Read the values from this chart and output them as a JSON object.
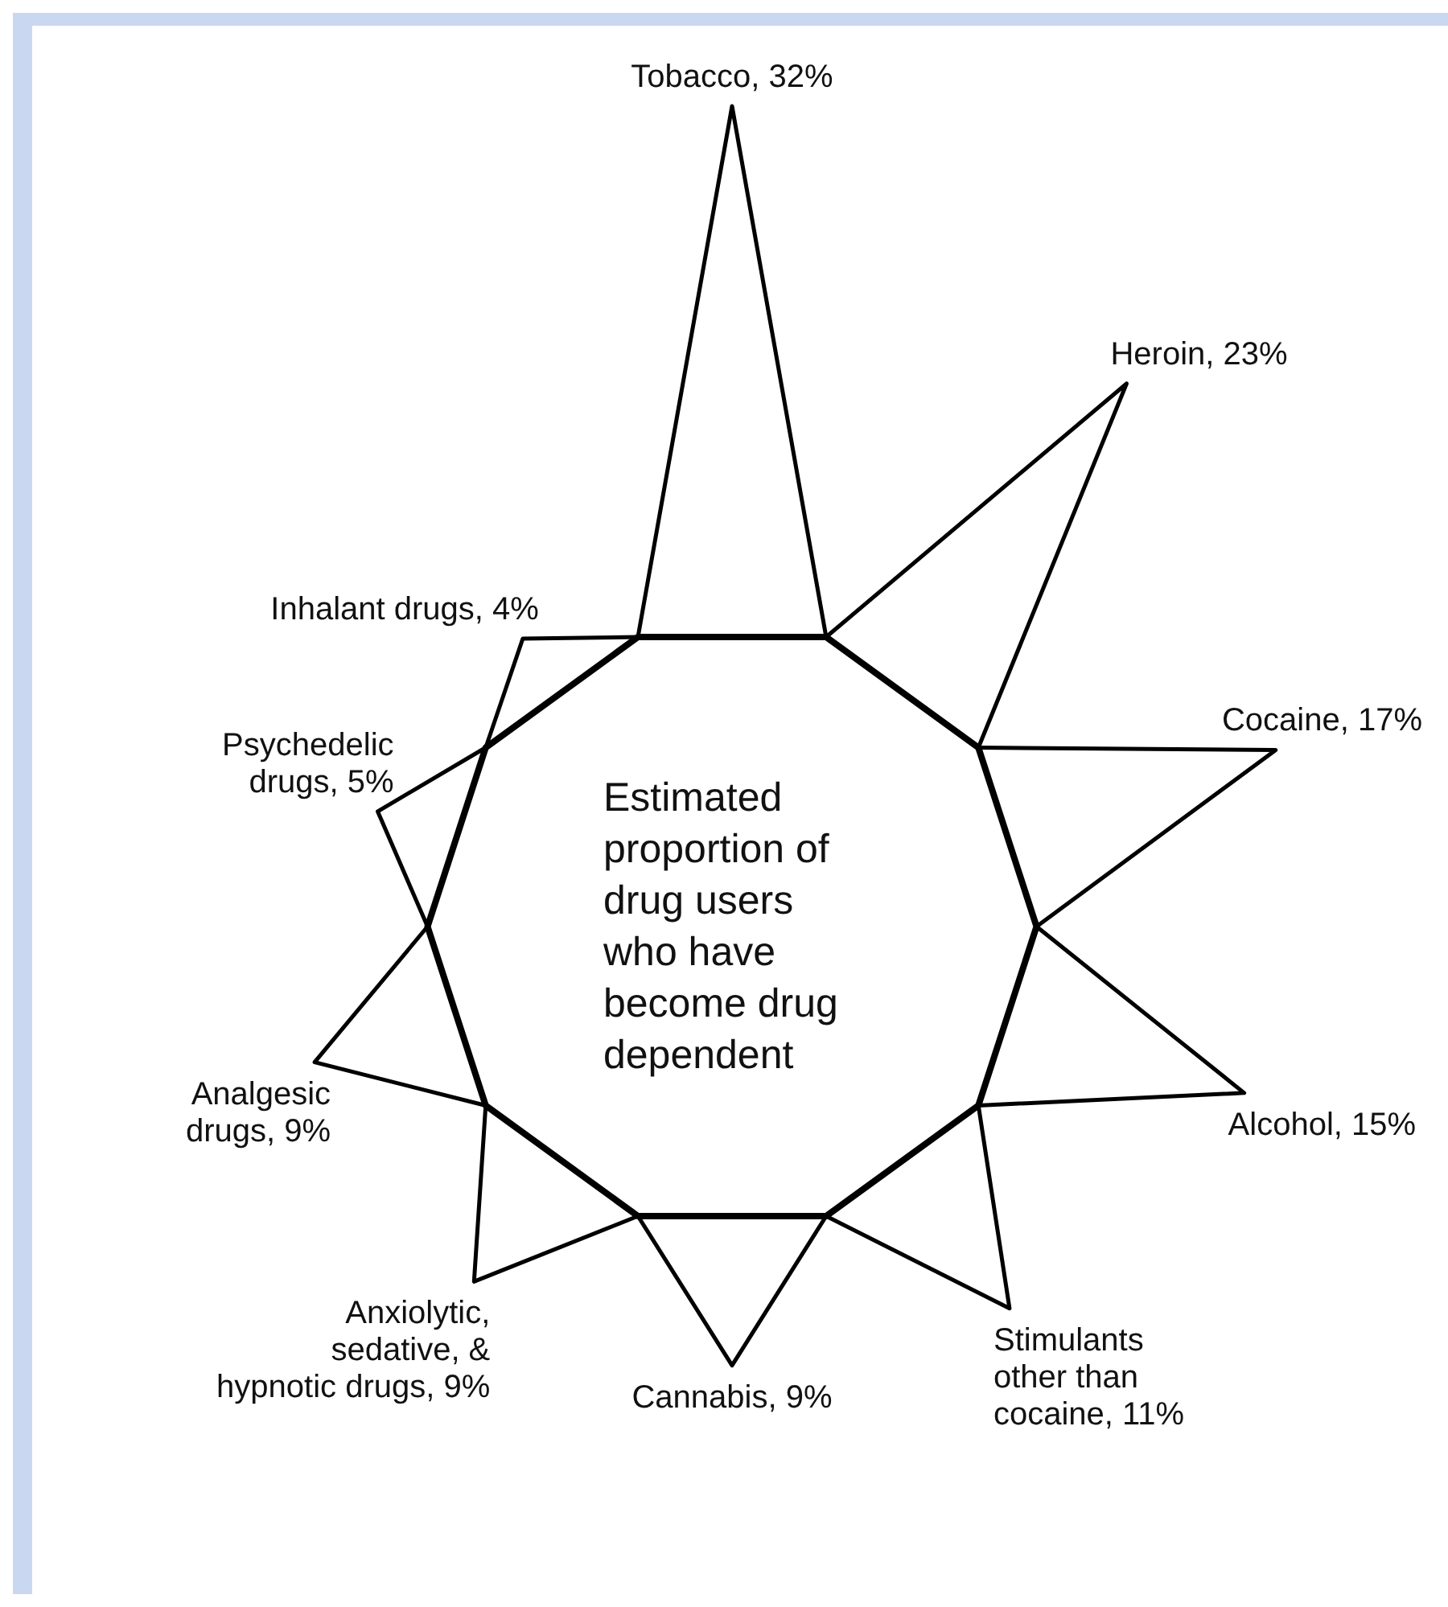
{
  "chart_data": {
    "type": "other",
    "title": "Estimated proportion of drug users who have become drug dependent",
    "categories": [
      "Tobacco",
      "Heroin",
      "Cocaine",
      "Alcohol",
      "Stimulants other than cocaine",
      "Cannabis",
      "Anxiolytic, sedative, & hypnotic drugs",
      "Analgesic drugs",
      "Psychedelic drugs",
      "Inhalant drugs"
    ],
    "values": [
      32,
      23,
      17,
      15,
      11,
      9,
      9,
      9,
      5,
      4
    ],
    "value_labels": [
      ", 32%",
      ", 23%",
      ", 17%",
      ", 15%",
      ", 11%",
      ", 9%",
      ", 9%",
      ", 9%",
      ", 5%",
      ", 4%"
    ],
    "color": "#000000"
  }
}
